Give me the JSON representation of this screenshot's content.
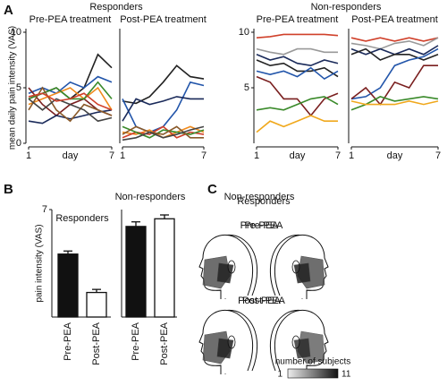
{
  "figure": {
    "panel_labels": [
      "A",
      "B",
      "C"
    ],
    "groups": [
      "Responders",
      "Non-responders"
    ],
    "y_label": "mean daily pain intensity (VAS)"
  },
  "chart_data": [
    {
      "type": "line",
      "title": "Pre-PEA treatment",
      "x": [
        1,
        2,
        3,
        4,
        5,
        6,
        7
      ],
      "xlim": [
        1,
        7
      ],
      "xticks": [
        1,
        7
      ],
      "x_label": "day",
      "ylim": [
        0,
        10
      ],
      "yticks": [
        0,
        5,
        10
      ],
      "series": [
        {
          "color": "#222222",
          "values": [
            4,
            4.5,
            5,
            4,
            5,
            8,
            6.8
          ]
        },
        {
          "color": "#2255aa",
          "values": [
            4.5,
            5,
            4.5,
            5.5,
            5,
            6,
            5.5
          ]
        },
        {
          "color": "#f08a1c",
          "values": [
            3.5,
            4,
            4.5,
            5,
            4,
            5,
            3
          ]
        },
        {
          "color": "#7a1f1f",
          "values": [
            5,
            3.5,
            2.5,
            3.5,
            4,
            3,
            2.5
          ]
        },
        {
          "color": "#3a8a2a",
          "values": [
            4,
            4.5,
            5,
            4,
            4,
            5.5,
            4
          ]
        },
        {
          "color": "#1a2a5a",
          "values": [
            2,
            1.8,
            2.5,
            2.2,
            2.5,
            2.8,
            3
          ]
        },
        {
          "color": "#8a5a2a",
          "values": [
            3,
            5,
            3,
            2,
            3.5,
            3,
            2.5
          ]
        },
        {
          "color": "#444444",
          "values": [
            4,
            3,
            4,
            3.5,
            3,
            2,
            2.3
          ]
        },
        {
          "color": "#d0402a",
          "values": [
            4.2,
            4.5,
            3.8,
            4,
            4.5,
            3.5,
            3
          ]
        }
      ]
    },
    {
      "type": "line",
      "title": "Post-PEA treatment",
      "x": [
        1,
        2,
        3,
        4,
        5,
        6,
        7
      ],
      "xlim": [
        1,
        7
      ],
      "xticks": [
        1,
        7
      ],
      "ylim": [
        0,
        10
      ],
      "series": [
        {
          "color": "#222222",
          "values": [
            3.8,
            3.6,
            4.2,
            5.5,
            7,
            6,
            5.8
          ]
        },
        {
          "color": "#2255aa",
          "values": [
            4,
            1.5,
            1,
            1.5,
            3,
            5.5,
            5.2
          ]
        },
        {
          "color": "#1a2a5a",
          "values": [
            2,
            4,
            3.5,
            3.8,
            4.2,
            4,
            4
          ]
        },
        {
          "color": "#f08a1c",
          "values": [
            1,
            0.8,
            1.2,
            0.5,
            1,
            1.5,
            1
          ]
        },
        {
          "color": "#d0402a",
          "values": [
            0.5,
            1,
            0.8,
            1.5,
            0.5,
            1,
            0.8
          ]
        },
        {
          "color": "#3a8a2a",
          "values": [
            1.5,
            1,
            0.5,
            1.2,
            1,
            0.8,
            1.2
          ]
        },
        {
          "color": "#8a5a2a",
          "values": [
            0.8,
            1.5,
            1,
            0.8,
            1.5,
            0.5,
            0.5
          ]
        },
        {
          "color": "#444444",
          "values": [
            0.3,
            0.5,
            1,
            0.5,
            0.8,
            1.2,
            1.5
          ]
        }
      ]
    },
    {
      "type": "line",
      "title": "Pre-PEA treatment",
      "x": [
        1,
        2,
        3,
        4,
        5,
        6,
        7
      ],
      "xlim": [
        1,
        7
      ],
      "xticks": [
        1,
        7
      ],
      "x_label": "day",
      "ylim": [
        0,
        10
      ],
      "yticks": [
        5,
        10
      ],
      "series": [
        {
          "color": "#d0402a",
          "values": [
            9.5,
            9.6,
            9.8,
            9.8,
            9.8,
            9.8,
            9.7
          ]
        },
        {
          "color": "#999999",
          "values": [
            8.5,
            8.2,
            8,
            8.5,
            8.5,
            8.2,
            8.2
          ]
        },
        {
          "color": "#1a2a5a",
          "values": [
            8,
            7.5,
            7.8,
            7.2,
            7,
            7.5,
            7.2
          ]
        },
        {
          "color": "#222222",
          "values": [
            7.5,
            7,
            7.2,
            6.5,
            6.5,
            6.8,
            6
          ]
        },
        {
          "color": "#2255aa",
          "values": [
            6.5,
            6.2,
            6.5,
            6,
            6.8,
            5.8,
            6.5
          ]
        },
        {
          "color": "#7a1f1f",
          "values": [
            6,
            5.5,
            4,
            4,
            2.5,
            4,
            4.5
          ]
        },
        {
          "color": "#3a8a2a",
          "values": [
            3,
            3.2,
            3,
            3.5,
            4,
            4.2,
            3.5
          ]
        },
        {
          "color": "#f0a81c",
          "values": [
            1,
            2,
            1.5,
            2,
            2.5,
            2,
            2
          ]
        }
      ]
    },
    {
      "type": "line",
      "title": "Post-PEA treatment",
      "x": [
        1,
        2,
        3,
        4,
        5,
        6,
        7
      ],
      "xlim": [
        1,
        7
      ],
      "xticks": [
        1,
        7
      ],
      "x_label": "day",
      "ylim": [
        0,
        10
      ],
      "series": [
        {
          "color": "#d0402a",
          "values": [
            9.5,
            9.2,
            9.5,
            9.2,
            9.5,
            9.2,
            9.5
          ]
        },
        {
          "color": "#999999",
          "values": [
            9,
            8.8,
            8.5,
            9,
            9.2,
            8.8,
            9.5
          ]
        },
        {
          "color": "#1a2a5a",
          "values": [
            8.5,
            8,
            8.5,
            8,
            8.5,
            8,
            8.8
          ]
        },
        {
          "color": "#222222",
          "values": [
            8,
            8.5,
            7.5,
            8,
            8,
            7.5,
            8
          ]
        },
        {
          "color": "#2255aa",
          "values": [
            4,
            4.2,
            5,
            7,
            7.5,
            7.8,
            8.5
          ]
        },
        {
          "color": "#7a1f1f",
          "values": [
            4,
            5,
            3.5,
            5.5,
            5,
            7,
            7
          ]
        },
        {
          "color": "#3a8a2a",
          "values": [
            3,
            3.5,
            4.2,
            3.8,
            4,
            4.2,
            4
          ]
        },
        {
          "color": "#f0a81c",
          "values": [
            3.8,
            3.5,
            3.5,
            3.5,
            3.8,
            3.5,
            3.8
          ]
        }
      ]
    },
    {
      "type": "bar",
      "y_label": "pain intensity (VAS)",
      "groups": [
        "Responders",
        "Non-responders"
      ],
      "categories": [
        "Pre-PEA",
        "Post-PEA",
        "Pre-PEA",
        "Post-PEA"
      ],
      "values": [
        4.1,
        1.6,
        5.9,
        6.4
      ],
      "errors": [
        0.2,
        0.2,
        0.3,
        0.25
      ],
      "colors": [
        "#111111",
        "#ffffff",
        "#111111",
        "#ffffff"
      ],
      "ylim": [
        0,
        7
      ],
      "yticks": [
        7
      ]
    }
  ],
  "head_maps": {
    "panels": [
      {
        "group": "Responders",
        "conditions": [
          "Pre-PEA",
          "Post-PEA"
        ]
      },
      {
        "group": "Non-responders",
        "conditions": [
          "Pre-PEA",
          "Post-PEA"
        ]
      }
    ],
    "colorbar": {
      "title": "number of subjects",
      "range": [
        1,
        11
      ]
    }
  }
}
